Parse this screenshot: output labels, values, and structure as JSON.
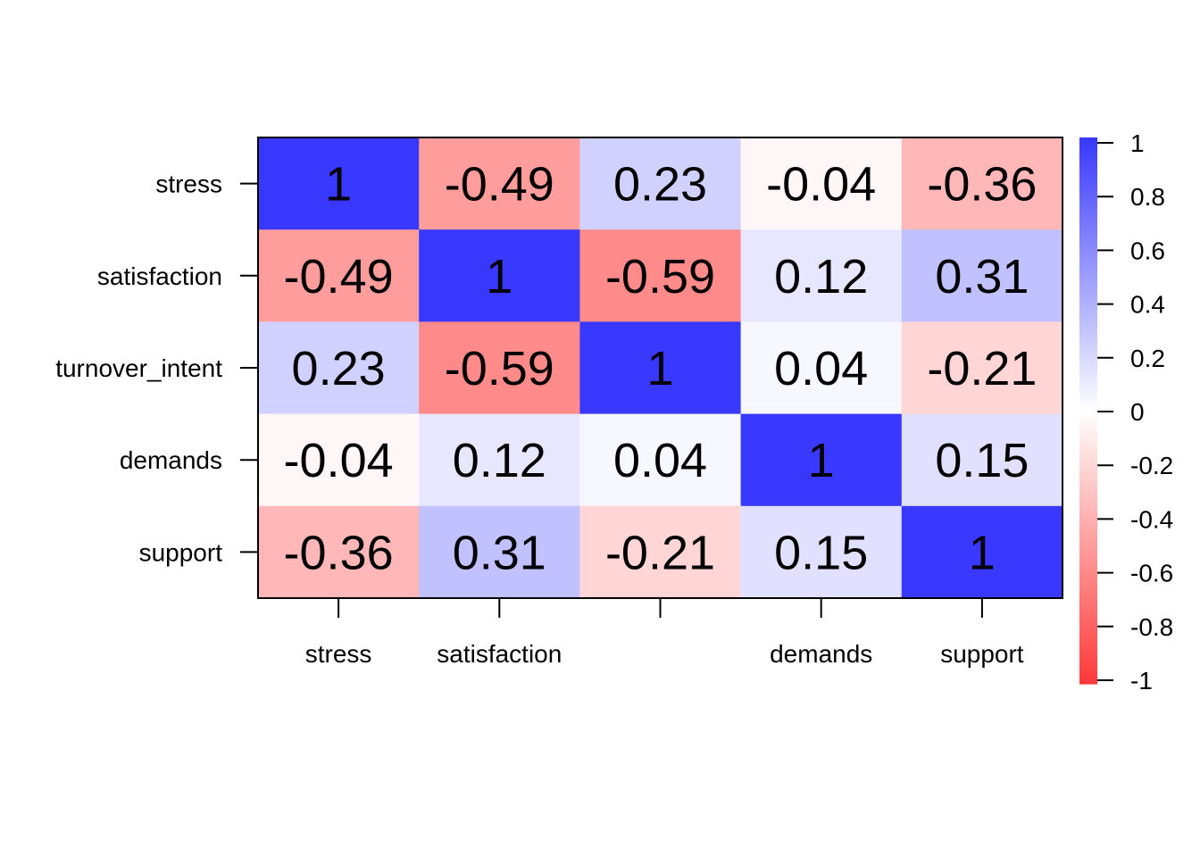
{
  "chart_data": {
    "type": "heatmap",
    "x_labels": [
      "stress",
      "satisfaction",
      "",
      "demands",
      "support"
    ],
    "y_labels": [
      "stress",
      "satisfaction",
      "turnover_intent",
      "demands",
      "support"
    ],
    "values": [
      [
        1,
        -0.49,
        0.23,
        -0.04,
        -0.36
      ],
      [
        -0.49,
        1,
        -0.59,
        0.12,
        0.31
      ],
      [
        0.23,
        -0.59,
        1,
        0.04,
        -0.21
      ],
      [
        -0.04,
        0.12,
        0.04,
        1,
        0.15
      ],
      [
        -0.36,
        0.31,
        -0.21,
        0.15,
        1
      ]
    ],
    "value_labels": [
      [
        "1",
        "-0.49",
        "0.23",
        "-0.04",
        "-0.36"
      ],
      [
        "-0.49",
        "1",
        "-0.59",
        "0.12",
        "0.31"
      ],
      [
        "0.23",
        "-0.59",
        "1",
        "0.04",
        "-0.21"
      ],
      [
        "-0.04",
        "0.12",
        "0.04",
        "1",
        "0.15"
      ],
      [
        "-0.36",
        "0.31",
        "-0.21",
        "0.15",
        "1"
      ]
    ],
    "color_scale": {
      "low": "#ff3838",
      "mid": "#ffffff",
      "high": "#3838ff",
      "range": [
        -1,
        1
      ]
    },
    "legend": {
      "position": "right",
      "ticks": [
        "1",
        "0.8",
        "0.6",
        "0.4",
        "0.2",
        "0",
        "-0.2",
        "-0.4",
        "-0.6",
        "-0.8",
        "-1"
      ],
      "tick_values": [
        1,
        0.8,
        0.6,
        0.4,
        0.2,
        0,
        -0.2,
        -0.4,
        -0.6,
        -0.8,
        -1
      ]
    }
  }
}
